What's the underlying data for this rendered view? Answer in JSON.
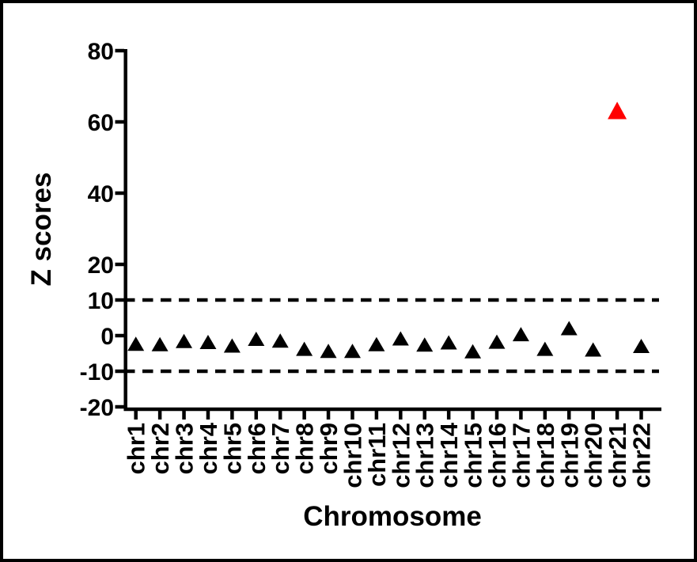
{
  "figure": {
    "background": "#ffffff",
    "frame_color": "#000000"
  },
  "chart_data": {
    "type": "scatter",
    "title": "",
    "xlabel": "Chromosome",
    "ylabel": "Z scores",
    "marker": "triangle",
    "default_color": "#000000",
    "highlight_color": "#ff0000",
    "axis_color": "#000000",
    "ylim": [
      -20,
      80
    ],
    "y_ticks": [
      80,
      60,
      40,
      20,
      10,
      0,
      -10,
      -20
    ],
    "threshold_lines": [
      10,
      -10
    ],
    "threshold_style": "dashed",
    "grid": false,
    "legend": "none",
    "categories": [
      "chr1",
      "chr2",
      "chr3",
      "chr4",
      "chr5",
      "chr6",
      "chr7",
      "chr8",
      "chr9",
      "chr10",
      "chr11",
      "chr12",
      "chr13",
      "chr14",
      "chr15",
      "chr16",
      "chr17",
      "chr18",
      "chr19",
      "chr20",
      "chr21",
      "chr22"
    ],
    "points": [
      {
        "category": "chr1",
        "value": -2.4,
        "color": "#000000"
      },
      {
        "category": "chr2",
        "value": -2.5,
        "color": "#000000"
      },
      {
        "category": "chr3",
        "value": -1.6,
        "color": "#000000"
      },
      {
        "category": "chr4",
        "value": -1.9,
        "color": "#000000"
      },
      {
        "category": "chr5",
        "value": -2.9,
        "color": "#000000"
      },
      {
        "category": "chr6",
        "value": -1.0,
        "color": "#000000"
      },
      {
        "category": "chr7",
        "value": -1.5,
        "color": "#000000"
      },
      {
        "category": "chr8",
        "value": -3.8,
        "color": "#000000"
      },
      {
        "category": "chr9",
        "value": -4.4,
        "color": "#000000"
      },
      {
        "category": "chr10",
        "value": -4.4,
        "color": "#000000"
      },
      {
        "category": "chr11",
        "value": -2.5,
        "color": "#000000"
      },
      {
        "category": "chr12",
        "value": -0.9,
        "color": "#000000"
      },
      {
        "category": "chr13",
        "value": -2.6,
        "color": "#000000"
      },
      {
        "category": "chr14",
        "value": -2.0,
        "color": "#000000"
      },
      {
        "category": "chr15",
        "value": -4.5,
        "color": "#000000"
      },
      {
        "category": "chr16",
        "value": -1.8,
        "color": "#000000"
      },
      {
        "category": "chr17",
        "value": 0.3,
        "color": "#000000"
      },
      {
        "category": "chr18",
        "value": -3.8,
        "color": "#000000"
      },
      {
        "category": "chr19",
        "value": 2.0,
        "color": "#000000"
      },
      {
        "category": "chr20",
        "value": -4.0,
        "color": "#000000"
      },
      {
        "category": "chr21",
        "value": 63.0,
        "color": "#ff0000"
      },
      {
        "category": "chr22",
        "value": -3.0,
        "color": "#000000"
      }
    ]
  }
}
